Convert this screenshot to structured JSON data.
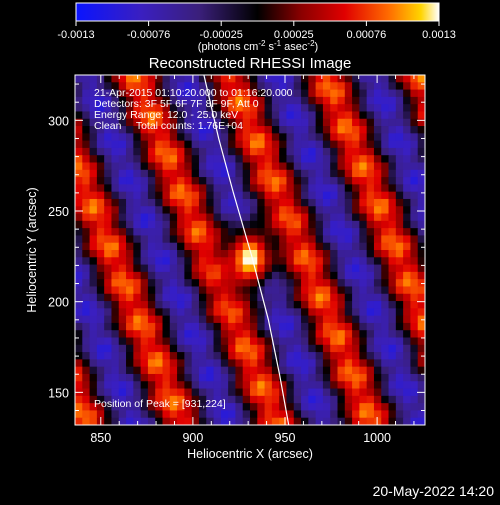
{
  "colorbar": {
    "ticks": [
      "-0.0013",
      "-0.00076",
      "-0.00025",
      "0.00025",
      "0.00076",
      "0.0013"
    ],
    "label_main": "(photons cm",
    "label_exp1": "-2",
    "label_mid1": " s",
    "label_exp2": "-1",
    "label_mid2": " asec",
    "label_exp3": "-2",
    "label_end": ")",
    "colormap": "blue-purple-black-red-orange-yellow-white"
  },
  "chart_data": {
    "type": "heatmap",
    "title": "Reconstructed RHESSI Image",
    "xlabel": "Heliocentric X (arcsec)",
    "ylabel": "Heliocentric Y (arcsec)",
    "xlim": [
      836,
      1026
    ],
    "ylim": [
      132,
      325
    ],
    "xticks": [
      850,
      900,
      950,
      1000
    ],
    "yticks": [
      150,
      200,
      250,
      300
    ],
    "annotations": [
      "21-Apr-2015 01:10:20.000 to 01:16:20.000",
      "Detectors: 3F 5F 6F 7F 8F 9F, Att 0",
      "Energy Range: 12.0 - 25.0 keV",
      "Clean     Total counts: 1.76E+04"
    ],
    "peak_label": "Position of Peak = [931,224]",
    "peak": {
      "x": 931,
      "y": 224,
      "value": 0.0013
    },
    "limb": [
      [
        906,
        325
      ],
      [
        914,
        290
      ],
      [
        922,
        260
      ],
      [
        932,
        225
      ],
      [
        941,
        190
      ],
      [
        947,
        160
      ],
      [
        952,
        132
      ]
    ],
    "stripe_angle_deg": 68,
    "stripe_period_arcsec": 48,
    "value_range": [
      -0.0013,
      0.0013
    ]
  },
  "footer": {
    "timestamp": "20-May-2022 14:20"
  }
}
